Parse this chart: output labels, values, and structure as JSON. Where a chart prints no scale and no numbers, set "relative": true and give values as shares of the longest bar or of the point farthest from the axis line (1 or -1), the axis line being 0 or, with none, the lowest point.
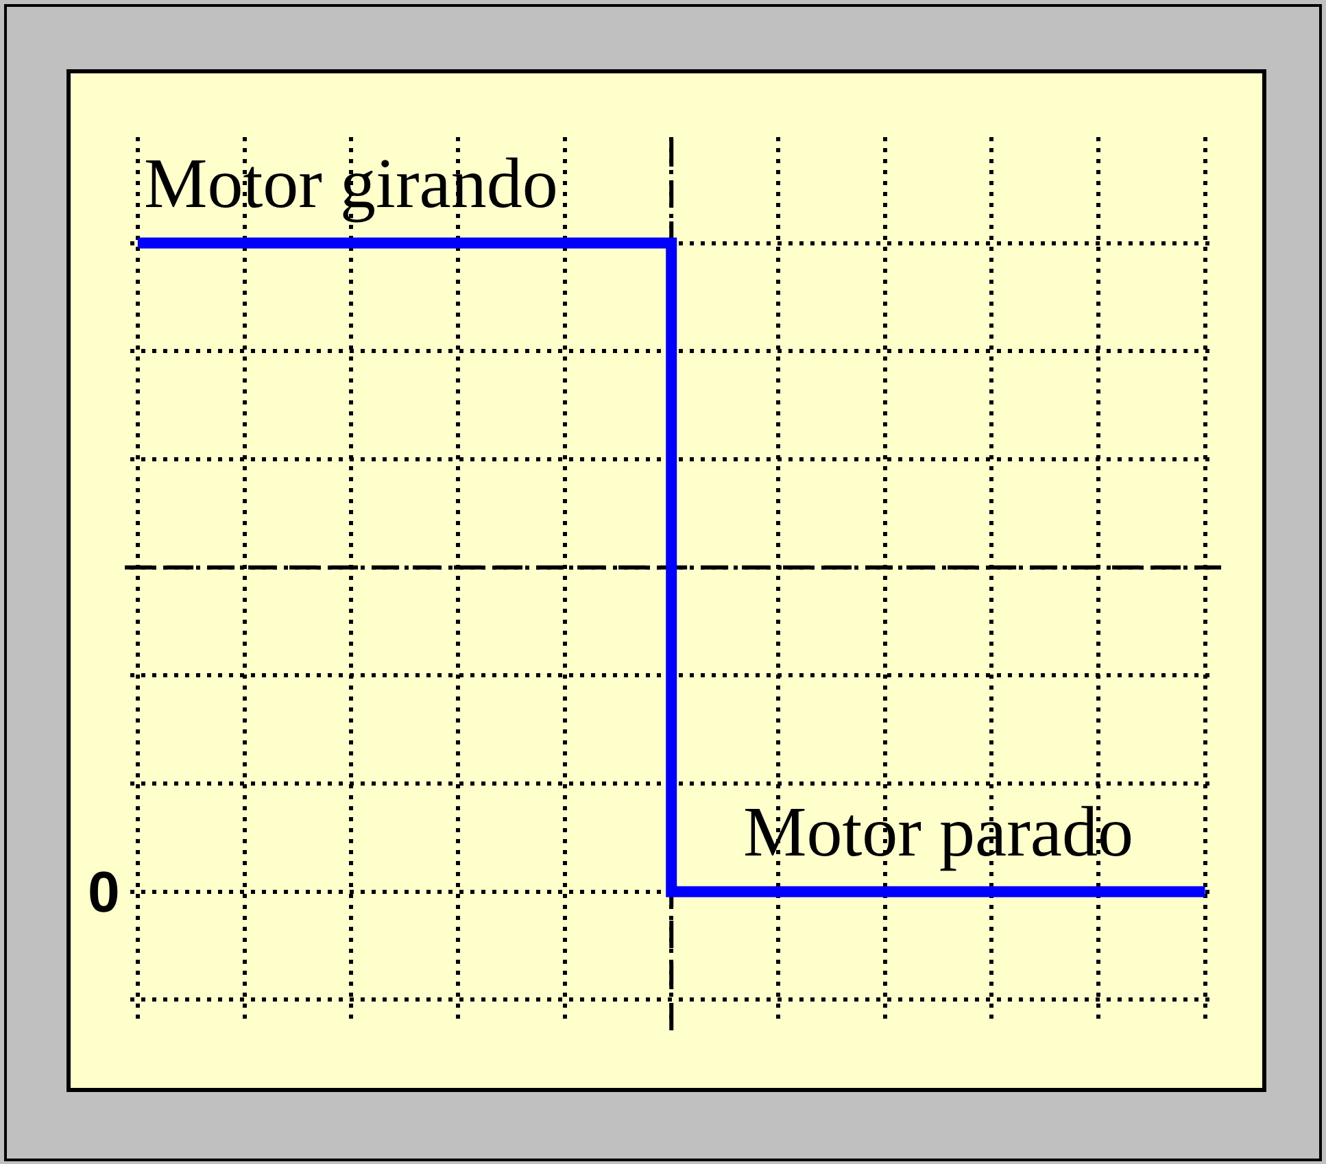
{
  "chart_data": {
    "type": "step",
    "relative": true,
    "categories": [
      null,
      null,
      null,
      null,
      null,
      null,
      null,
      null,
      null,
      null,
      null
    ],
    "values": [
      1,
      1,
      1,
      1,
      1,
      0,
      0,
      0,
      0,
      0,
      0
    ],
    "color": "#0000ff",
    "tick_labels": false,
    "grid": true,
    "ref_lines": [
      {
        "axis": "y",
        "value": 0.5,
        "color": "#000000",
        "line_style": "dashed"
      }
    ],
    "annotations": [
      {
        "text": "Motor girando",
        "y": 1
      },
      {
        "text": "Motor parado",
        "y": 0
      },
      "0"
    ]
  }
}
